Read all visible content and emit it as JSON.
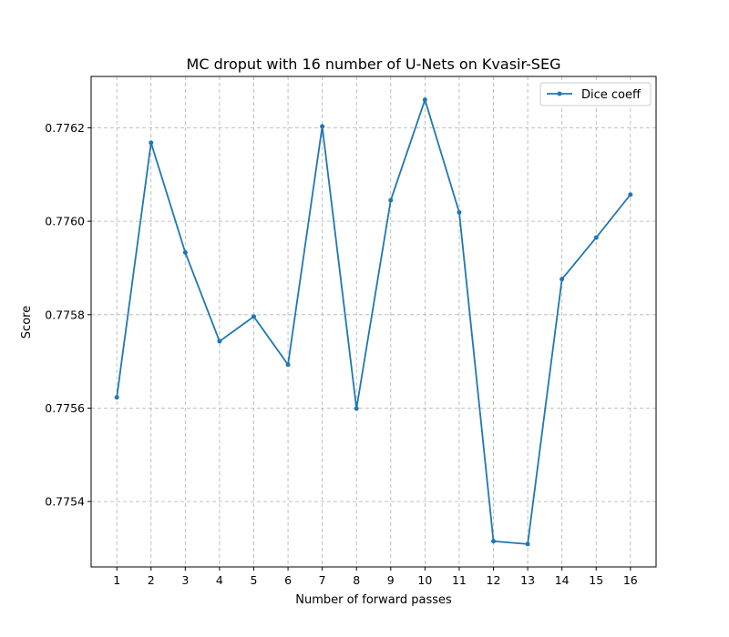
{
  "chart_data": {
    "type": "line",
    "title": "MC droput with 16 number of U-Nets on Kvasir-SEG",
    "xlabel": "Number of forward passes",
    "ylabel": "Score",
    "x": [
      1,
      2,
      3,
      4,
      5,
      6,
      7,
      8,
      9,
      10,
      11,
      12,
      13,
      14,
      15,
      16
    ],
    "x_ticks": [
      "1",
      "2",
      "3",
      "4",
      "5",
      "6",
      "7",
      "8",
      "9",
      "10",
      "11",
      "12",
      "13",
      "14",
      "15",
      "16"
    ],
    "y_ticks": [
      "0.7754",
      "0.7756",
      "0.7758",
      "0.7760",
      "0.7762"
    ],
    "xlim": [
      0.25,
      16.75
    ],
    "ylim": [
      0.77526,
      0.77631
    ],
    "grid": true,
    "legend_position": "top-right",
    "series": [
      {
        "name": "Dice coeff",
        "color": "#1f77b4",
        "marker": "circle",
        "values": [
          0.775623,
          0.776168,
          0.775933,
          0.775743,
          0.775796,
          0.775693,
          0.776203,
          0.775599,
          0.776045,
          0.77626,
          0.776019,
          0.775315,
          0.775309,
          0.775876,
          0.775965,
          0.776057
        ]
      }
    ]
  }
}
